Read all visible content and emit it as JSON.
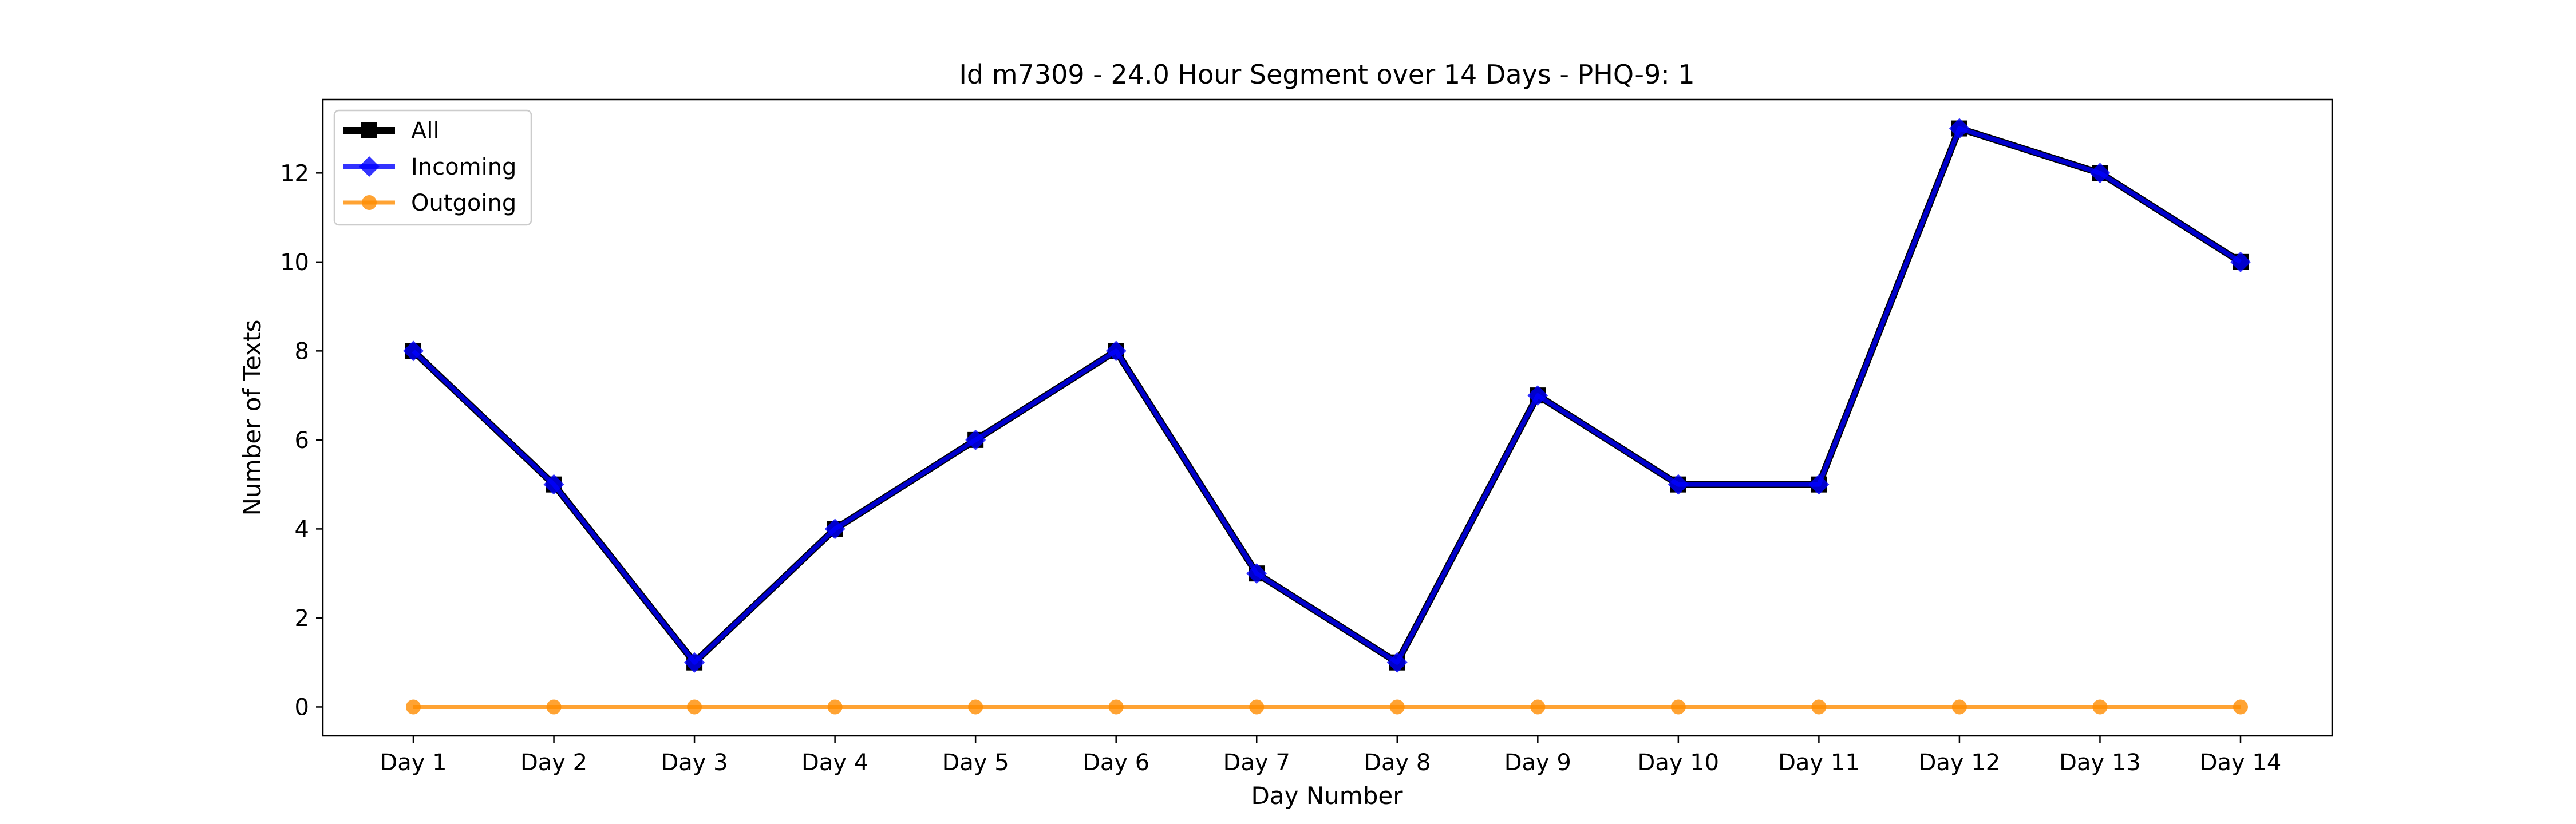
{
  "chart_data": {
    "type": "line",
    "title": "Id m7309 - 24.0 Hour Segment over 14 Days - PHQ-9: 1",
    "xlabel": "Day Number",
    "ylabel": "Number of Texts",
    "categories": [
      "Day 1",
      "Day 2",
      "Day 3",
      "Day 4",
      "Day 5",
      "Day 6",
      "Day 7",
      "Day 8",
      "Day 9",
      "Day 10",
      "Day 11",
      "Day 12",
      "Day 13",
      "Day 14"
    ],
    "ylim": [
      -0.65,
      13.65
    ],
    "yticks": [
      0,
      2,
      4,
      6,
      8,
      10,
      12
    ],
    "grid": false,
    "legend_position": "top-left",
    "series": [
      {
        "name": "All",
        "color": "#000000",
        "marker": "square",
        "values": [
          8,
          5,
          1,
          4,
          6,
          8,
          3,
          1,
          7,
          5,
          5,
          13,
          12,
          10
        ]
      },
      {
        "name": "Incoming",
        "color": "#0000ff",
        "marker": "diamond",
        "values": [
          8,
          5,
          1,
          4,
          6,
          8,
          3,
          1,
          7,
          5,
          5,
          13,
          12,
          10
        ]
      },
      {
        "name": "Outgoing",
        "color": "#ff8c00",
        "marker": "circle",
        "values": [
          0,
          0,
          0,
          0,
          0,
          0,
          0,
          0,
          0,
          0,
          0,
          0,
          0,
          0
        ]
      }
    ]
  }
}
